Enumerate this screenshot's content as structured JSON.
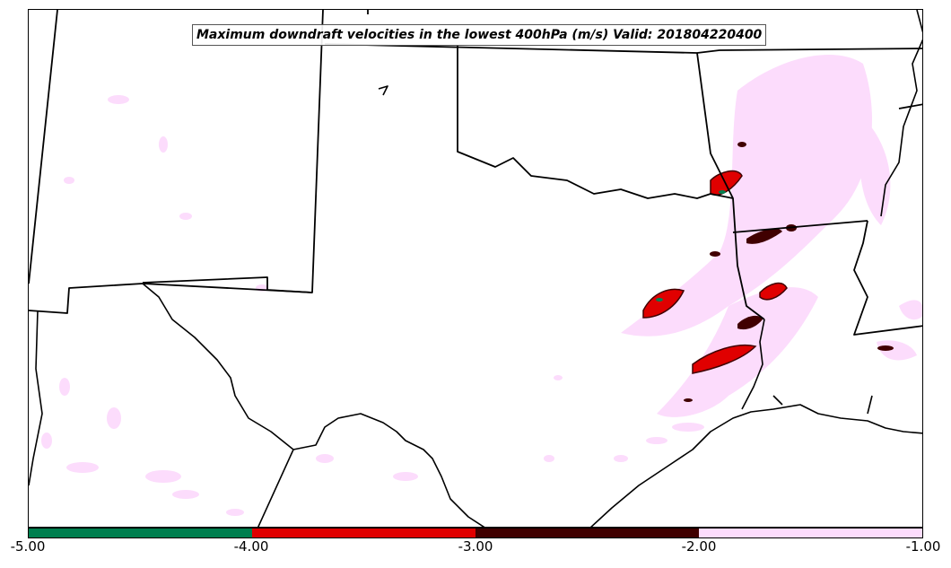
{
  "map": {
    "title": "Maximum downdraft velocities in the lowest 400hPa (m/s) Valid: 201804220400",
    "region": "Southern Plains United States (Texas, Oklahoma, Louisiana, Arkansas, New Mexico, northern Mexico)",
    "projection": "Lambert conformal",
    "background_color": "#ffffff",
    "boundary_color": "#000000"
  },
  "colorbar": {
    "ticks": [
      "-5.00",
      "-4.00",
      "-3.00",
      "-2.00",
      "-1.00"
    ],
    "bins": [
      {
        "range": [
          -5.0,
          -4.0
        ],
        "color": "#007f4f"
      },
      {
        "range": [
          -4.0,
          -3.0
        ],
        "color": "#e00000"
      },
      {
        "range": [
          -3.0,
          -2.0
        ],
        "color": "#400000"
      },
      {
        "range": [
          -2.0,
          -1.0
        ],
        "color": "#fcdcfc"
      }
    ]
  },
  "features": {
    "strongest_cells": "red / dark-red cores over east Texas near the Louisiana border and along the Red River near the Oklahoma–Arkansas border",
    "weak_field": "widespread light pink (-2 to -1 m/s) areas across east Texas, Arkansas, Louisiana and scattered over New Mexico and Mexico"
  }
}
